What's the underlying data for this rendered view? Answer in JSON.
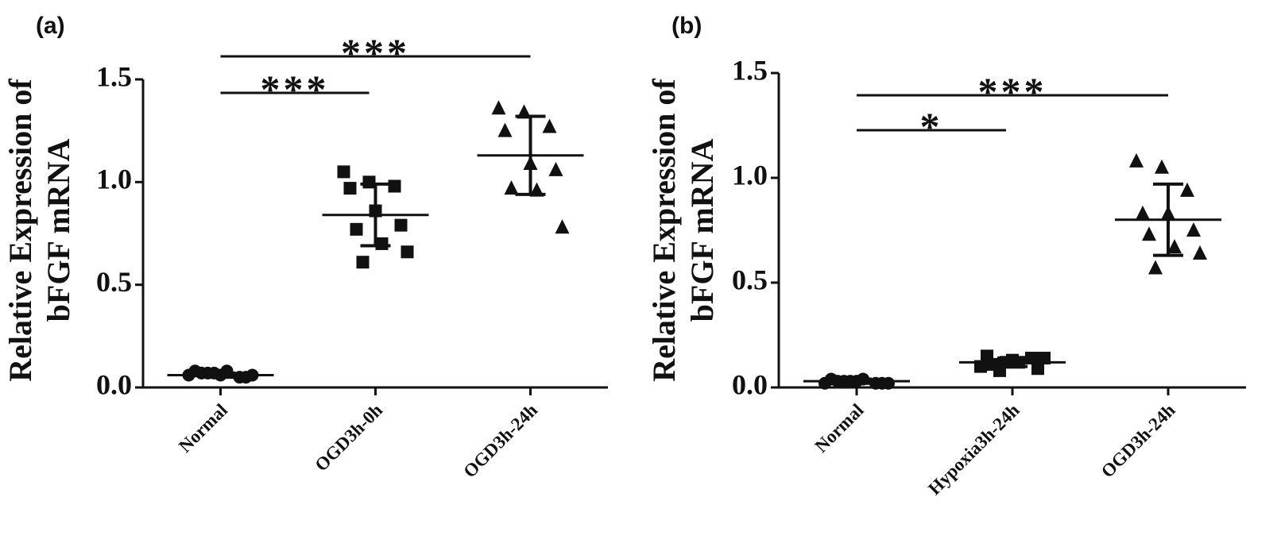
{
  "chart_data": [
    {
      "type": "dotplot",
      "panel": "(a)",
      "ylabel": [
        "Relative Expression of",
        "bFGF mRNA"
      ],
      "categories": [
        "Normal",
        "OGD3h-0h",
        "OGD3h-24h"
      ],
      "groups": [
        {
          "marker": "circle",
          "values": [
            0.06,
            0.07,
            0.05,
            0.08,
            0.06,
            0.05,
            0.07,
            0.08,
            0.06,
            0.07
          ],
          "mean": 0.06,
          "sd": 0.01
        },
        {
          "marker": "square",
          "values": [
            1.05,
            1.0,
            0.98,
            0.97,
            0.86,
            0.79,
            0.77,
            0.7,
            0.66,
            0.61
          ],
          "mean": 0.84,
          "sd": 0.15
        },
        {
          "marker": "triangle",
          "values": [
            1.36,
            1.34,
            1.27,
            1.25,
            1.09,
            1.06,
            0.97,
            0.96,
            0.78
          ],
          "mean": 1.13,
          "sd": 0.19
        }
      ],
      "color": "#111111",
      "ylim": [
        0,
        1.5
      ],
      "yticks": [
        {
          "value": 0,
          "label": "0.0"
        },
        0.5,
        {
          "value": 1,
          "label": "1.0"
        },
        1.5
      ],
      "annotations": [
        {
          "label": "***",
          "from": 0,
          "to": 1
        },
        {
          "label": "***",
          "from": 0,
          "to": 2
        }
      ]
    },
    {
      "type": "dotplot",
      "panel": "(b)",
      "ylabel": [
        "Relative Expression of",
        "bFGF mRNA"
      ],
      "categories": [
        "Normal",
        "Hypoxia3h-24h",
        "OGD3h-24h"
      ],
      "groups": [
        {
          "marker": "circle",
          "values": [
            0.02,
            0.03,
            0.02,
            0.04,
            0.03,
            0.02,
            0.03,
            0.04,
            0.02,
            0.03
          ],
          "mean": 0.03,
          "sd": 0.01
        },
        {
          "marker": "square",
          "values": [
            0.1,
            0.12,
            0.14,
            0.15,
            0.13,
            0.09,
            0.11,
            0.12,
            0.14,
            0.08
          ],
          "mean": 0.12,
          "sd": 0.02
        },
        {
          "marker": "triangle",
          "values": [
            1.08,
            1.05,
            0.94,
            0.83,
            0.83,
            0.75,
            0.73,
            0.67,
            0.64,
            0.57
          ],
          "mean": 0.8,
          "sd": 0.17
        }
      ],
      "color": "#111111",
      "ylim": [
        0,
        1.5
      ],
      "yticks": [
        {
          "value": 0,
          "label": "0.0"
        },
        0.5,
        {
          "value": 1,
          "label": "1.0"
        },
        1.5
      ],
      "annotations": [
        {
          "label": "*",
          "from": 0,
          "to": 1
        },
        {
          "label": "***",
          "from": 0,
          "to": 2
        }
      ]
    }
  ]
}
